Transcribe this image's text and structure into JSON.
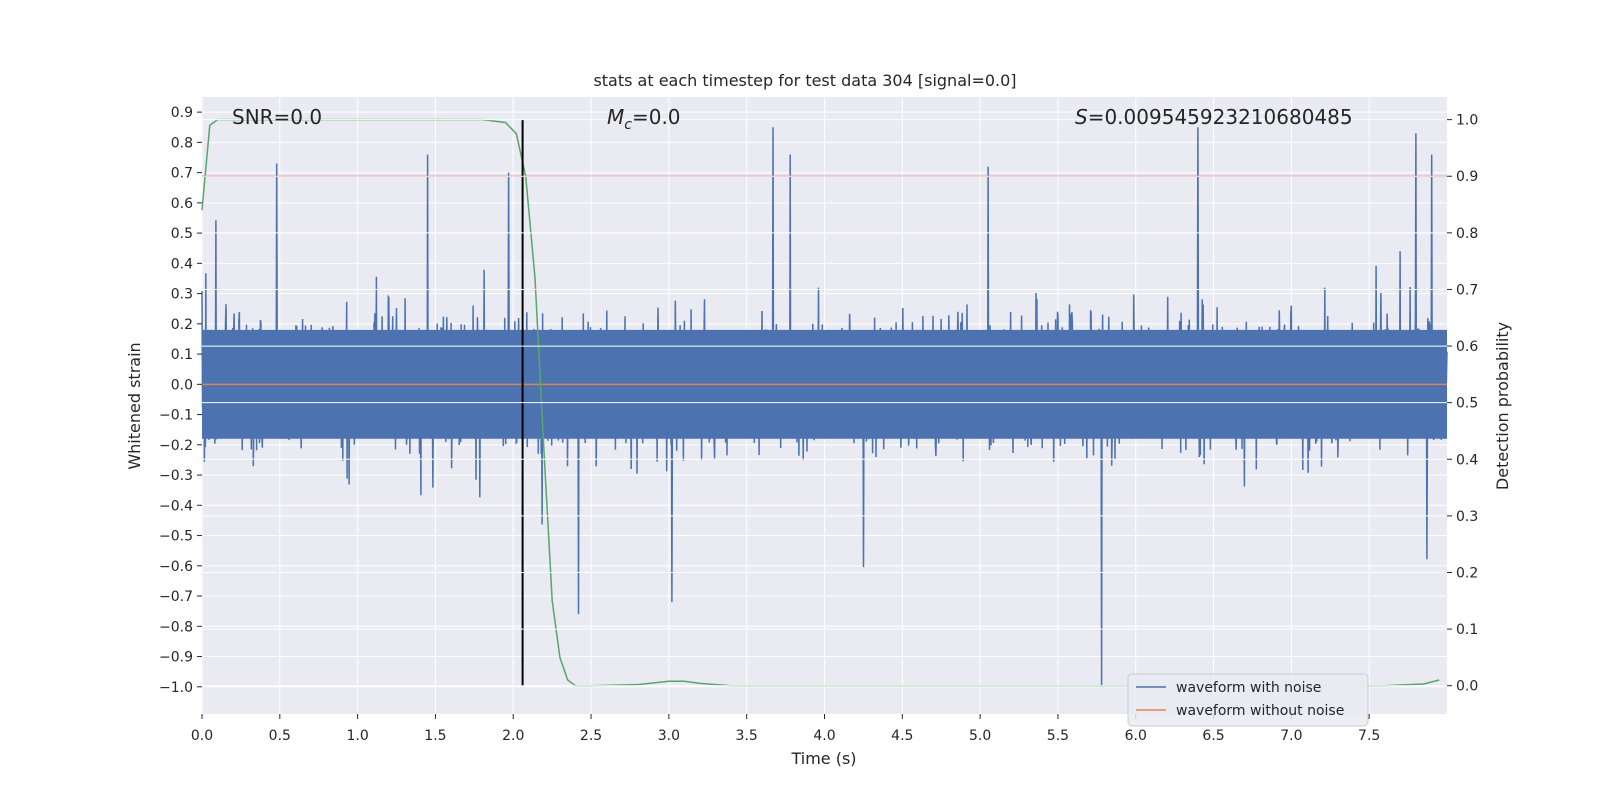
{
  "chart_data": {
    "type": "line",
    "title": "stats at each timestep for test data 304 [signal=0.0]",
    "xlabel": "Time (s)",
    "ylabel": "Whitened strain",
    "y2label": "Detection probability",
    "xlim": [
      0.0,
      8.0
    ],
    "ylim": [
      -1.09,
      0.95
    ],
    "y2lim": [
      -0.05,
      1.04
    ],
    "xticks": [
      "0.0",
      "0.5",
      "1.0",
      "1.5",
      "2.0",
      "2.5",
      "3.0",
      "3.5",
      "4.0",
      "4.5",
      "5.0",
      "5.5",
      "6.0",
      "6.5",
      "7.0",
      "7.5"
    ],
    "yticks": [
      "0.9",
      "0.8",
      "0.7",
      "0.6",
      "0.5",
      "0.4",
      "0.3",
      "0.2",
      "0.1",
      "0.0",
      "−0.1",
      "−0.2",
      "−0.3",
      "−0.4",
      "−0.5",
      "−0.6",
      "−0.7",
      "−0.8",
      "−0.9",
      "−1.0"
    ],
    "y2ticks": [
      "1.0",
      "0.9",
      "0.8",
      "0.7",
      "0.6",
      "0.5",
      "0.4",
      "0.3",
      "0.2",
      "0.1",
      "0.0"
    ],
    "grid": true,
    "legend_position": "lower-right",
    "annotations": {
      "snr": "SNR=0.0",
      "mc_symbol": "M",
      "mc_sub": "c",
      "mc_value": "=0.0",
      "s_symbol": "S",
      "s_value": "=0.009545923210680485"
    },
    "series": [
      {
        "name": "waveform with noise",
        "color": "#4c72b0",
        "axis": "left",
        "envelope_note": "dense noise, approx range",
        "y_min": -1.0,
        "y_max": 0.86,
        "peaks": [
          {
            "x": 0.48,
            "y": 0.73
          },
          {
            "x": 1.45,
            "y": 0.76
          },
          {
            "x": 1.97,
            "y": 0.7
          },
          {
            "x": 3.67,
            "y": 0.85
          },
          {
            "x": 3.78,
            "y": 0.76
          },
          {
            "x": 5.05,
            "y": 0.72
          },
          {
            "x": 6.4,
            "y": 0.85
          },
          {
            "x": 7.8,
            "y": 0.83
          },
          {
            "x": 7.9,
            "y": 0.76
          },
          {
            "x": 5.78,
            "y": -1.0
          },
          {
            "x": 2.42,
            "y": -0.76
          },
          {
            "x": 3.02,
            "y": -0.72
          }
        ]
      },
      {
        "name": "waveform without noise",
        "color": "#dd8452",
        "axis": "left",
        "x": [
          0.0,
          8.0
        ],
        "y": [
          0.0,
          0.0
        ]
      },
      {
        "name": "",
        "color": "#55a868",
        "axis": "right",
        "x": [
          0.0,
          0.05,
          0.1,
          0.2,
          0.5,
          1.0,
          1.5,
          1.8,
          1.95,
          2.02,
          2.08,
          2.14,
          2.2,
          2.25,
          2.3,
          2.35,
          2.4,
          2.5,
          2.8,
          3.0,
          3.1,
          3.2,
          3.4,
          4.0,
          5.0,
          6.0,
          7.0,
          7.6,
          7.85,
          7.95
        ],
        "y": [
          0.84,
          0.99,
          1.0,
          1.0,
          1.0,
          1.0,
          1.0,
          1.0,
          0.995,
          0.975,
          0.9,
          0.72,
          0.4,
          0.15,
          0.05,
          0.01,
          0.0,
          0.0,
          0.002,
          0.008,
          0.008,
          0.004,
          0.0,
          0.0,
          0.0,
          0.0,
          0.0,
          0.0,
          0.003,
          0.01
        ]
      }
    ],
    "threshold": {
      "color": "#c44e52",
      "axis": "right",
      "y": 0.9
    },
    "vline": {
      "color": "#000000",
      "x": 2.06,
      "ymin_axis_right": 0.0,
      "ymax_axis_right": 1.0
    }
  }
}
